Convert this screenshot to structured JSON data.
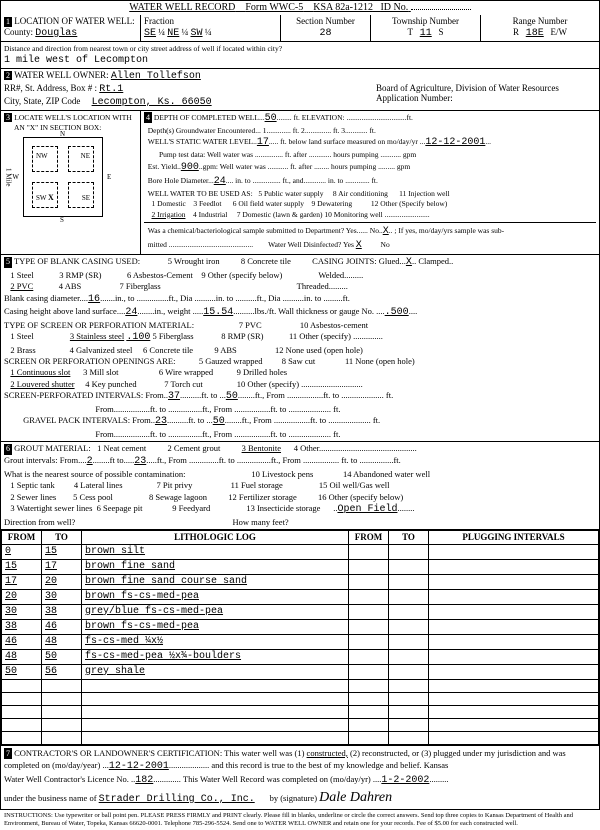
{
  "header": {
    "title": "WATER WELL RECORD",
    "form": "Form WWC-5",
    "ksa": "KSA 82a-1212",
    "id_label": "ID No."
  },
  "loc": {
    "label": "LOCATION OF WATER WELL:",
    "county_label": "County:",
    "county": "Douglas",
    "fraction_label": "Fraction",
    "frac1": "SE",
    "q1": "¼",
    "frac2": "NE",
    "q2": "¼",
    "frac3": "SW",
    "q3": "¼",
    "section_label": "Section Number",
    "section": "28",
    "township_label": "Township Number",
    "township_t": "T",
    "township": "11",
    "township_s": "S",
    "range_label": "Range Number",
    "range_r": "R",
    "range": "18E",
    "range_ew": "E/W",
    "direction_label": "Distance and direction from nearest town or city street address of well if located within city?",
    "direction": "1 mile west of Lecompton"
  },
  "owner": {
    "label": "WATER WELL OWNER:",
    "name": "Allen Tollefson",
    "addr_label": "RR#, St. Address, Box # :",
    "addr": "Rt.1",
    "city_label": "City, State, ZIP Code",
    "city": "Lecompton, Ks.  66050",
    "board": "Board of Agriculture, Division of Water Resources",
    "appnum_label": "Application Number:"
  },
  "locate": {
    "label": "LOCATE WELL'S LOCATION WITH",
    "sub": "AN \"X\" IN SECTION BOX:",
    "n": "N",
    "s": "S",
    "e": "E",
    "w": "W",
    "nw": "NW",
    "ne": "NE",
    "sw": "SW",
    "se": "SE",
    "mile": "1 Mile"
  },
  "depth": {
    "label": "DEPTH OF COMPLETED WELL",
    "depth": "50",
    "elev_label": "ft. ELEVATION:",
    "gw_label": "Depth(s) Groundwater Encountered",
    "gw1": "1",
    "gw2": "ft. 2",
    "gw3": "ft. 3",
    "gwft": "ft.",
    "static_label": "WELL'S STATIC WATER LEVEL",
    "static": "17",
    "static_suffix": "ft. below land surface measured on mo/day/yr",
    "static_date": "12-12-2001",
    "pump_test": "Pump test data:  Well water was",
    "pump_after": "ft. after",
    "pump_hours": "hours pumping",
    "pump_gpm": "gpm",
    "yield_label": "Est. Yield",
    "yield": "900",
    "yield_unit": "gpm:  Well water was",
    "bore_label": "Bore Hole Diameter",
    "bore": "24",
    "bore_in": "in. to",
    "bore_ft": "ft., and",
    "bore_into": "in. to",
    "bore_ft2": "ft.",
    "use_label": "WELL WATER TO BE USED AS:",
    "u1": "1 Domestic",
    "u2": "2 Irrigation",
    "u3": "3 Feedlot",
    "u4": "4 Industrial",
    "u5": "5 Public water supply",
    "u6": "6 Oil field water supply",
    "u7": "7 Domestic (lawn & garden)",
    "u8": "8 Air conditioning",
    "u9": "9 Dewatering",
    "u10": "10 Monitoring well",
    "u11": "11 Injection well",
    "u12": "12 Other (Specify below)",
    "chem_q": "Was a chemical/bacteriological sample submitted to Department? Yes",
    "chem_no": "No",
    "chem_x": "X",
    "chem_suffix": "; If yes, mo/day/yrs sample was sub-",
    "mitted": "mitted",
    "disinfect": "Water Well Disinfected?  Yes",
    "dis_x": "X",
    "dis_no": "No"
  },
  "casing": {
    "label": "TYPE OF BLANK CASING USED:",
    "c1": "1 Steel",
    "c2": "2 PVC",
    "c3": "3 RMP (SR)",
    "c4": "4 ABS",
    "c5": "5 Wrought iron",
    "c6": "6 Asbestos-Cement",
    "c7": "7 Fiberglass",
    "c8": "8 Concrete tile",
    "c9": "9 Other (specify below)",
    "joints": "CASING JOINTS: Glued",
    "clamped": "Clamped",
    "clamped_x": "X",
    "welded": "Welded",
    "threaded": "Threaded",
    "diam_label": "Blank casing diameter",
    "diam": "16",
    "diam_in": "in., to",
    "diam_ft": "ft., Dia",
    "diam_into": "in. to",
    "diam_ft2": "ft., Dia",
    "diam_into2": "in. to",
    "diam_ft3": "ft.",
    "height_label": "Casing height above land surface",
    "height": "24",
    "height_in": "in., weight",
    "weight": "15.54",
    "weight_unit": "lbs./ft. Wall thickness or gauge No.",
    "gauge": ".500",
    "screen_label": "TYPE OF SCREEN OR PERFORATION MATERIAL:",
    "s1": "1 Steel",
    "s2": "2 Brass",
    "s3": "3 Stainless steel",
    "s3v": ".100",
    "s4": "4 Galvanized steel",
    "s5": "5 Fiberglass",
    "s6": "6 Concrete tile",
    "s7": "7 PVC",
    "s8": "8 RMP (SR)",
    "s9": "9 ABS",
    "s10": "10 Asbestos-cement",
    "s11": "11 Other (specify)",
    "s12": "12 None used (open hole)",
    "open_label": "SCREEN OR PERFORATION OPENINGS ARE:",
    "o1": "1 Continuous slot",
    "o2": "2 Louvered shutter",
    "o3": "3 Mill slot",
    "o4": "4 Key punched",
    "o5": "5 Gauzed wrapped",
    "o6": "6 Wire wrapped",
    "o7": "7 Torch cut",
    "o8": "8 Saw cut",
    "o9": "9 Drilled holes",
    "o10": "10 Other (specify)",
    "o11": "11 None (open hole)",
    "perf_label": "SCREEN-PERFORATED INTERVALS:  From",
    "perf_from1": "37",
    "perf_to1": "50",
    "grav_label": "GRAVEL PACK INTERVALS:  From",
    "grav_from1": "23",
    "grav_to1": "50",
    "ftto": "ft. to",
    "ftfrom": "ft., From",
    "ft": "ft."
  },
  "grout": {
    "label": "GROUT MATERIAL:",
    "g1": "1 Neat cement",
    "g2": "2 Cement grout",
    "g3": "3 Bentonite",
    "g4": "4 Other",
    "int_label": "Grout intervals:  From",
    "from1": "2",
    "to1": "23",
    "contam_label": "What is the nearest source of possible contamination:",
    "p1": "1 Septic tank",
    "p2": "2 Sewer lines",
    "p3": "3 Watertight sewer lines",
    "p4": "4 Lateral lines",
    "p5": "5 Cess pool",
    "p6": "6 Seepage pit",
    "p7": "7 Pit privy",
    "p8": "8 Sewage lagoon",
    "p9": "9 Feedyard",
    "p10": "10 Livestock pens",
    "p11": "11 Fuel storage",
    "p12": "12 Fertilizer storage",
    "p13": "13 Insecticide storage",
    "p14": "14 Abandoned water well",
    "p15": "15 Oil well/Gas well",
    "p16": "16 Other (specify below)",
    "other_val": "Open Field",
    "dir_label": "Direction from well?",
    "feet_label": "How many feet?"
  },
  "log": {
    "h_from": "FROM",
    "h_to": "TO",
    "h_lith": "LITHOLOGIC LOG",
    "h_plug": "PLUGGING INTERVALS",
    "rows": [
      {
        "from": "0",
        "to": "15",
        "lith": "brown silt"
      },
      {
        "from": "15",
        "to": "17",
        "lith": "brown fine sand"
      },
      {
        "from": "17",
        "to": "20",
        "lith": "brown fine sand course sand"
      },
      {
        "from": "20",
        "to": "30",
        "lith": "brown fs-cs-med-pea"
      },
      {
        "from": "30",
        "to": "38",
        "lith": "grey/blue fs-cs-med-pea"
      },
      {
        "from": "38",
        "to": "46",
        "lith": "brown fs-cs-med-pea"
      },
      {
        "from": "46",
        "to": "48",
        "lith": "fs-cs-med ¼x½"
      },
      {
        "from": "48",
        "to": "50",
        "lith": "fs-cs-med-pea ½x¾-boulders"
      },
      {
        "from": "50",
        "to": "56",
        "lith": "grey shale"
      },
      {
        "from": "",
        "to": "",
        "lith": ""
      },
      {
        "from": "",
        "to": "",
        "lith": ""
      },
      {
        "from": "",
        "to": "",
        "lith": ""
      },
      {
        "from": "",
        "to": "",
        "lith": ""
      },
      {
        "from": "",
        "to": "",
        "lith": ""
      }
    ]
  },
  "cert": {
    "label": "CONTRACTOR'S OR LANDOWNER'S CERTIFICATION: This water well was (1)",
    "constructed": "constructed,",
    "rest": "(2) reconstructed, or (3) plugged under my jurisdiction and was",
    "line2a": "completed on (mo/day/year)",
    "date1": "12-12-2001",
    "line2b": "and this record is true to the best of my knowledge and belief. Kansas",
    "line3a": "Water Well Contractor's Licence No.",
    "lic": "182",
    "line3b": "This Water Well Record was completed on (mo/day/yr)",
    "date2": "1-2-2002",
    "line4a": "under the business name of",
    "biz": "Strader Drilling Co., Inc.",
    "by": "by (signature)",
    "sig": "Dale Dahren"
  },
  "instr": "INSTRUCTIONS: Use typewriter or ball point pen. PLEASE PRESS FIRMLY and PRINT clearly. Please fill in blanks, underline or circle the correct answers. Send top three copies to Kansas Department of Health and Environment, Bureau of Water, Topeka, Kansas 66620-0001. Telephone 785-296-5524. Send one to WATER WELL OWNER and retain one for your records. Fee of $5.00 for each constructed well."
}
